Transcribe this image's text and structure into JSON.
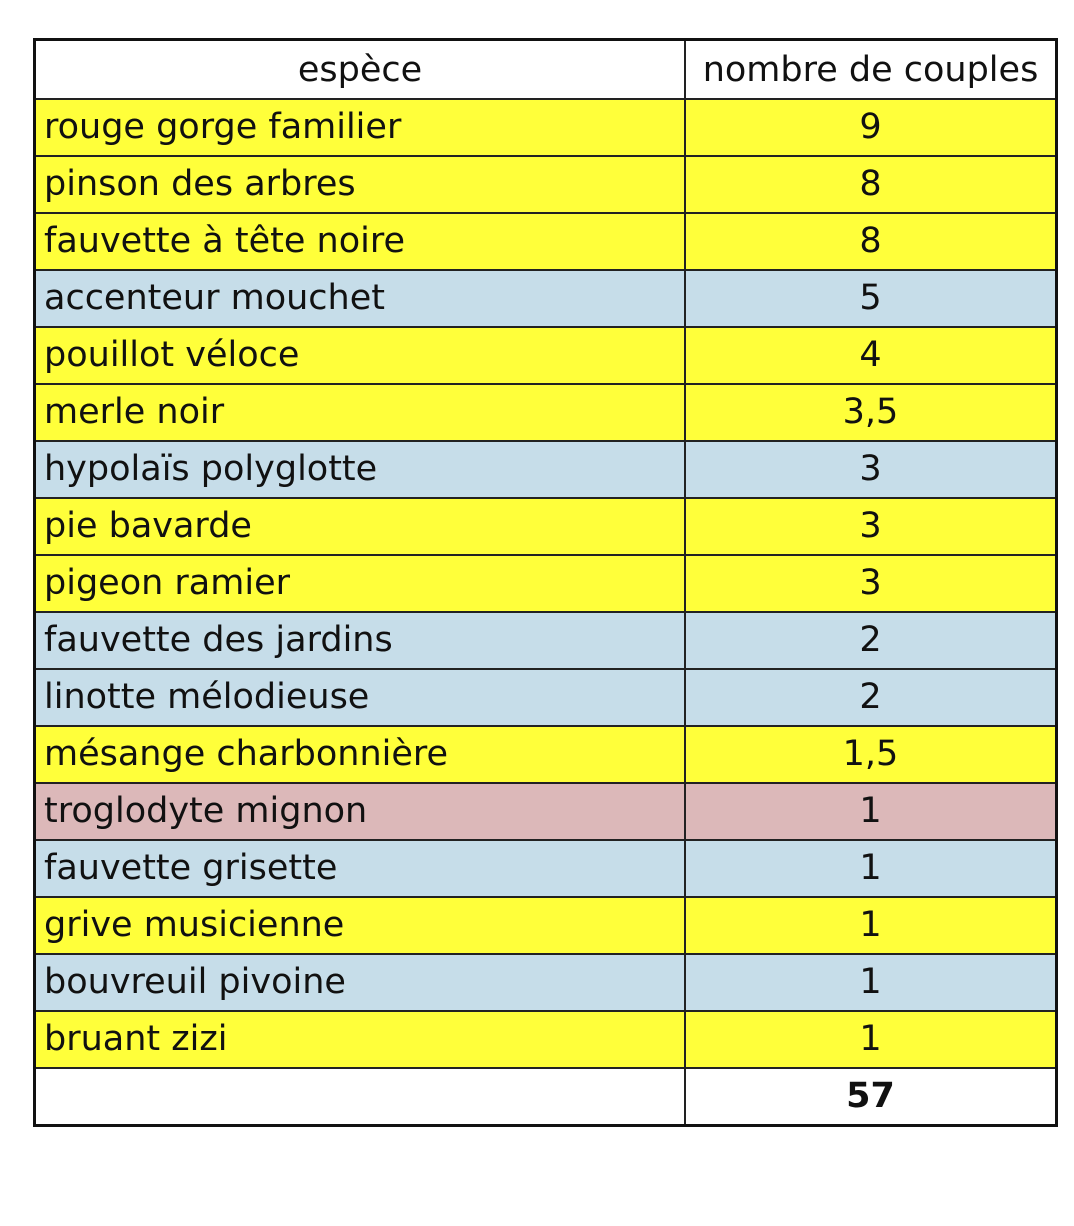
{
  "table": {
    "headers": [
      "espèce",
      "nombre de couples"
    ],
    "colors": {
      "yellow": "#ffff3a",
      "blue": "#c6dde9",
      "pink": "#dcb8b9"
    },
    "rows": [
      {
        "species": "rouge gorge familier",
        "couples": "9",
        "color": "yellow"
      },
      {
        "species": "pinson des arbres",
        "couples": "8",
        "color": "yellow"
      },
      {
        "species": "fauvette à tête noire",
        "couples": "8",
        "color": "yellow"
      },
      {
        "species": "accenteur mouchet",
        "couples": "5",
        "color": "blue"
      },
      {
        "species": "pouillot véloce",
        "couples": "4",
        "color": "yellow"
      },
      {
        "species": "merle noir",
        "couples": "3,5",
        "color": "yellow"
      },
      {
        "species": "hypolaïs polyglotte",
        "couples": "3",
        "color": "blue"
      },
      {
        "species": "pie bavarde",
        "couples": "3",
        "color": "yellow"
      },
      {
        "species": "pigeon ramier",
        "couples": "3",
        "color": "yellow"
      },
      {
        "species": "fauvette des jardins",
        "couples": "2",
        "color": "blue"
      },
      {
        "species": "linotte mélodieuse",
        "couples": "2",
        "color": "blue"
      },
      {
        "species": "mésange charbonnière",
        "couples": "1,5",
        "color": "yellow"
      },
      {
        "species": "troglodyte mignon",
        "couples": "1",
        "color": "pink"
      },
      {
        "species": "fauvette grisette",
        "couples": "1",
        "color": "blue"
      },
      {
        "species": "grive musicienne",
        "couples": "1",
        "color": "yellow"
      },
      {
        "species": "bouvreuil pivoine",
        "couples": "1",
        "color": "blue"
      },
      {
        "species": "bruant zizi",
        "couples": "1",
        "color": "yellow"
      }
    ],
    "total": "57"
  }
}
